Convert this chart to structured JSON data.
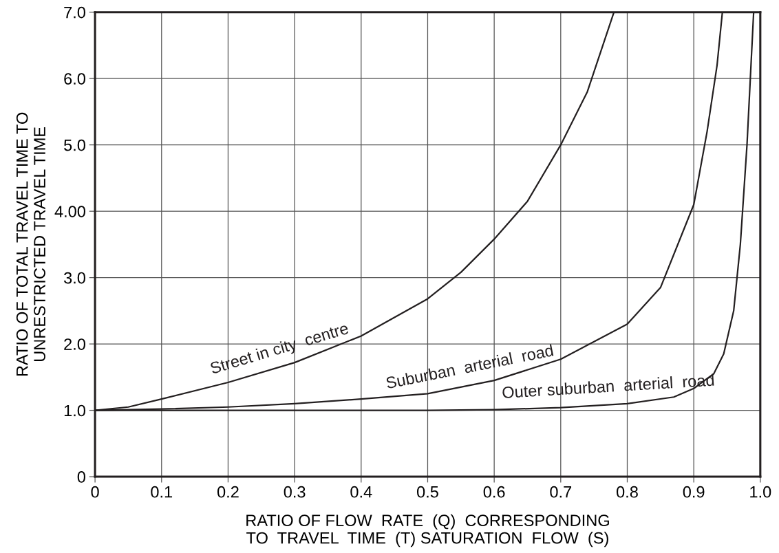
{
  "chart_data": {
    "type": "line",
    "xlabel": "RATIO OF FLOW  RATE  (Q)  CORRESPONDING\nTO  TRAVEL  TIME  (T) SATURATION  FLOW  (S)",
    "ylabel": "RATIO OF TOTAL TRAVEL TIME TO\nUNRESTRICTED TRAVEL TIME",
    "xlim": [
      0,
      1
    ],
    "ylim": [
      0,
      7
    ],
    "xticks": [
      0,
      0.1,
      0.2,
      0.3,
      0.4,
      0.5,
      0.6,
      0.7,
      0.8,
      0.9,
      {
        "value": 1,
        "label": "1.0"
      }
    ],
    "yticks": [
      0,
      {
        "value": 1,
        "label": "1.0"
      },
      {
        "value": 2,
        "label": "2.0"
      },
      {
        "value": 3,
        "label": "3.0"
      },
      {
        "value": 4,
        "label": "4.00"
      },
      {
        "value": 5,
        "label": "5.0"
      },
      {
        "value": 6,
        "label": "6.0"
      },
      {
        "value": 7,
        "label": "7.0"
      }
    ],
    "grid": true,
    "legend": false,
    "marker": "none",
    "line_style": "solid",
    "series": [
      {
        "name": "Street in city  centre",
        "color": "#231f20",
        "x": [
          0,
          0.05,
          0.1,
          0.2,
          0.3,
          0.4,
          0.5,
          0.55,
          0.6,
          0.65,
          0.7,
          0.74,
          0.78
        ],
        "values": [
          1.0,
          1.05,
          1.17,
          1.42,
          1.72,
          2.12,
          2.68,
          3.08,
          3.58,
          4.15,
          5.0,
          5.8,
          7.0
        ]
      },
      {
        "name": "Suburban  arterial  road",
        "color": "#231f20",
        "x": [
          0,
          0.1,
          0.2,
          0.3,
          0.4,
          0.5,
          0.6,
          0.7,
          0.8,
          0.85,
          0.9,
          0.92,
          0.935,
          0.943
        ],
        "values": [
          1.0,
          1.02,
          1.05,
          1.1,
          1.17,
          1.25,
          1.45,
          1.77,
          2.3,
          2.85,
          4.1,
          5.2,
          6.2,
          7.0
        ]
      },
      {
        "name": "Outer suburban  arterial  road",
        "color": "#231f20",
        "x": [
          0,
          0.5,
          0.6,
          0.7,
          0.8,
          0.87,
          0.9,
          0.93,
          0.945,
          0.96,
          0.97,
          0.98,
          0.99
        ],
        "values": [
          1.0,
          1.0,
          1.01,
          1.04,
          1.1,
          1.2,
          1.33,
          1.55,
          1.85,
          2.5,
          3.5,
          5.0,
          7.0
        ]
      }
    ]
  }
}
